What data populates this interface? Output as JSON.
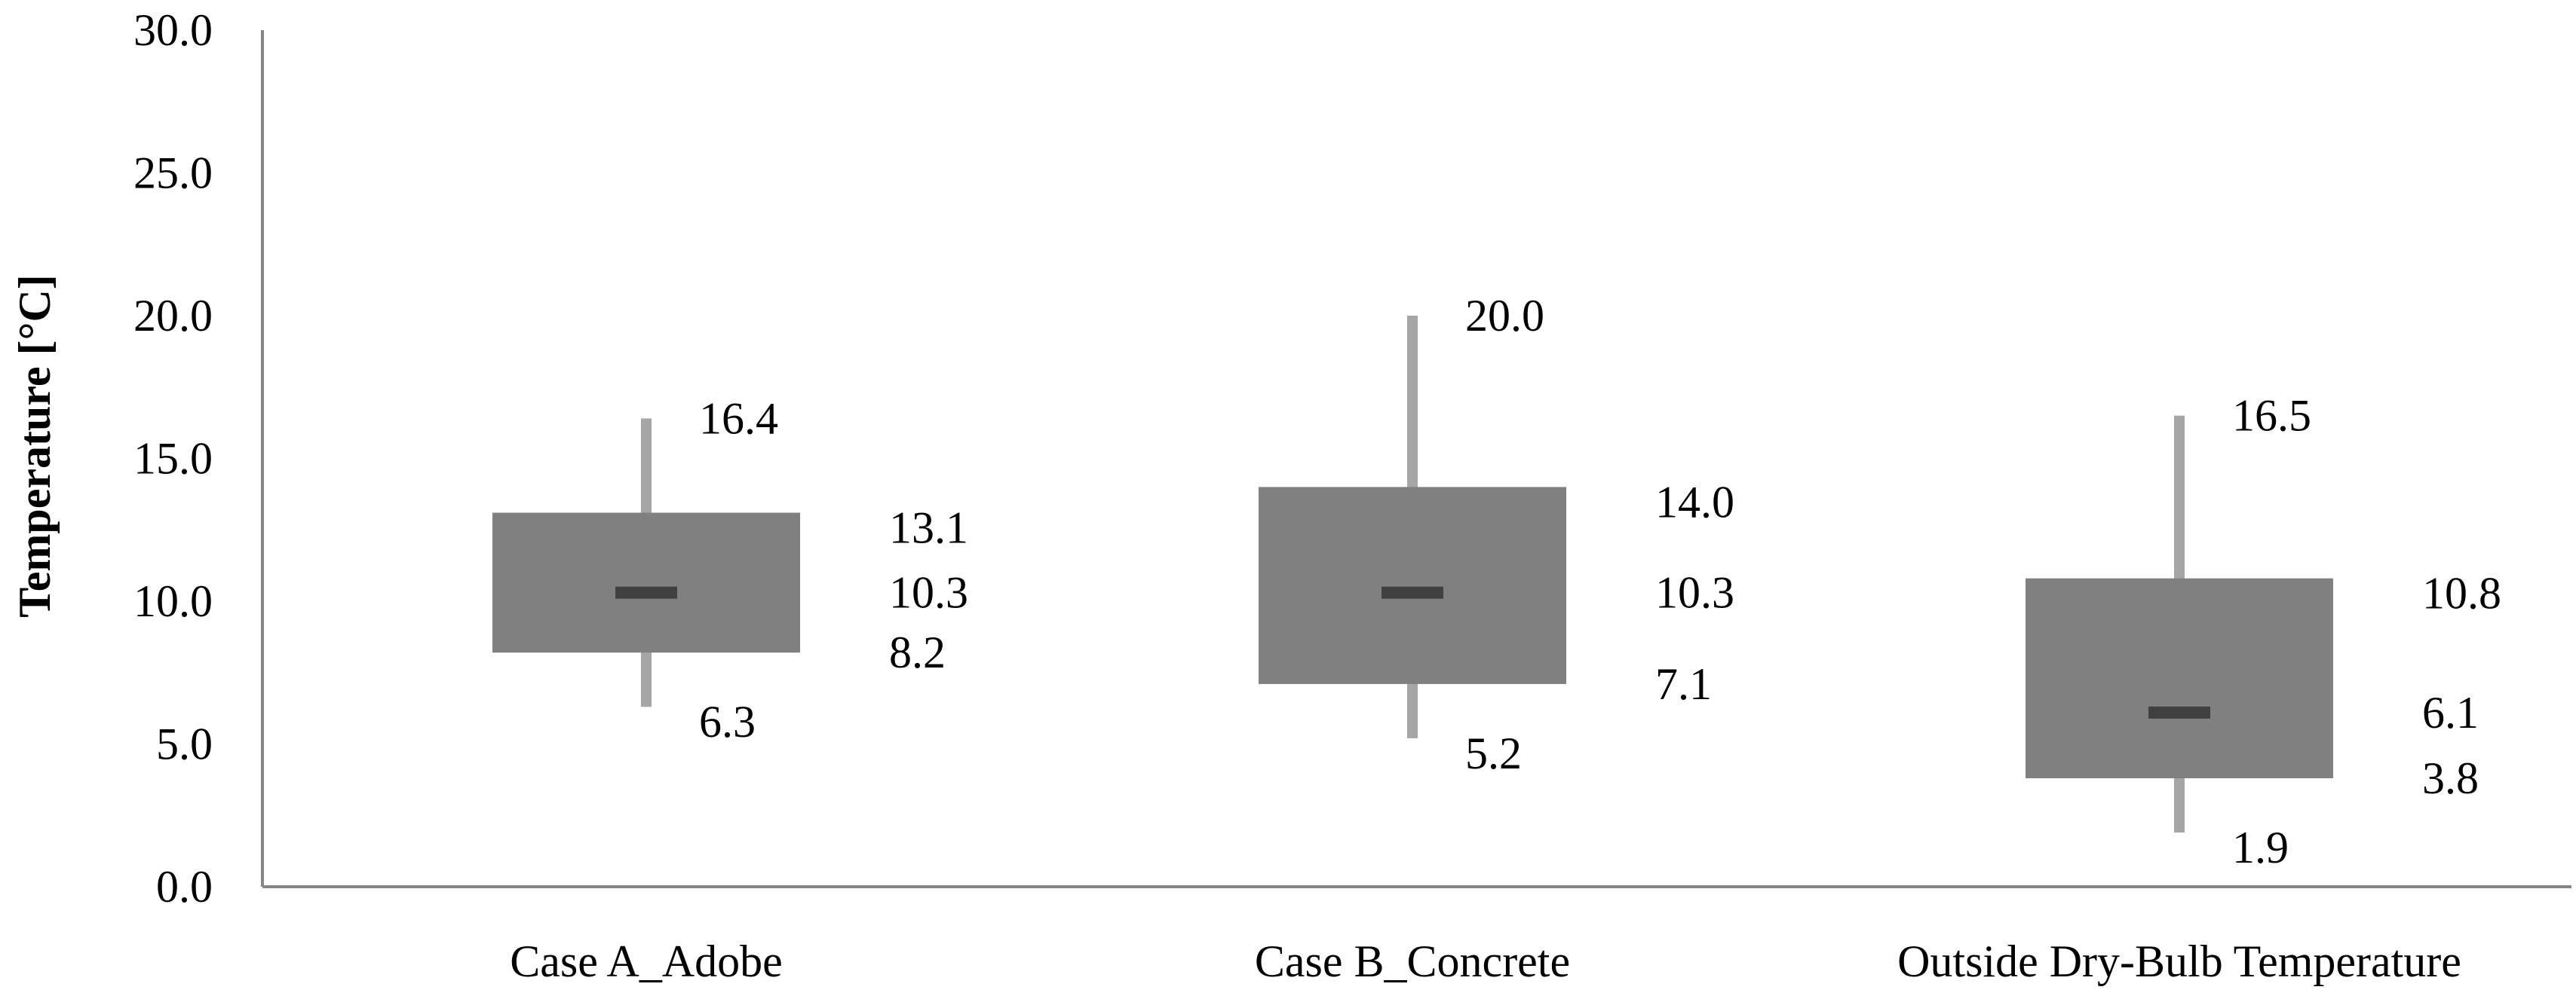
{
  "chart_data": {
    "type": "box",
    "title": "",
    "xlabel": "",
    "ylabel": "Temperature [°C]",
    "ylim": [
      0,
      30
    ],
    "yticks": [
      "0.0",
      "5.0",
      "10.0",
      "15.0",
      "20.0",
      "25.0",
      "30.0"
    ],
    "grid": false,
    "legend": "none",
    "categories": [
      "Case A_Adobe",
      "Case B_Concrete",
      "Outside Dry-Bulb Temperature"
    ],
    "series": [
      {
        "min": [
          6.3,
          5.2,
          1.9
        ],
        "q1": [
          8.2,
          7.1,
          3.8
        ],
        "median": [
          10.3,
          10.3,
          6.1
        ],
        "q3": [
          13.1,
          14.0,
          10.8
        ],
        "max": [
          16.4,
          20.0,
          16.5
        ]
      }
    ],
    "labels": {
      "min": [
        "6.3",
        "5.2",
        "1.9"
      ],
      "q1": [
        "8.2",
        "7.1",
        "3.8"
      ],
      "median": [
        "10.3",
        "10.3",
        "6.1"
      ],
      "q3": [
        "13.1",
        "14.0",
        "10.8"
      ],
      "max": [
        "16.4",
        "20.0",
        "16.5"
      ]
    },
    "colors": {
      "box": "#808080",
      "whisker": "#a6a6a6",
      "median": "#404040",
      "axis": "#868686"
    }
  }
}
